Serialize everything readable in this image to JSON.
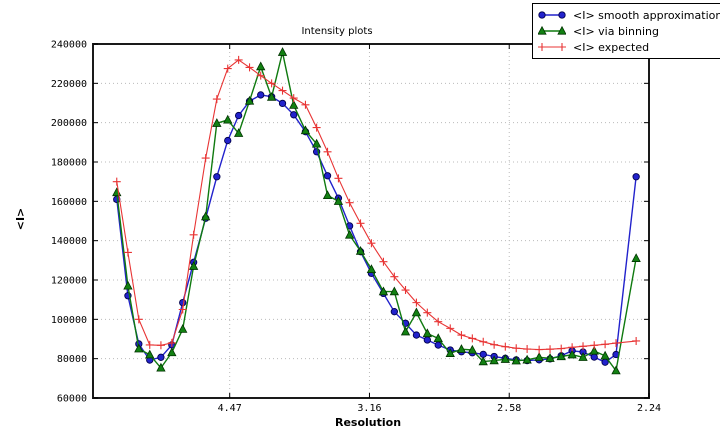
{
  "chart_data": {
    "type": "line",
    "title": "Intensity plots",
    "xlabel": "Resolution",
    "ylabel": "<I>",
    "grid": true,
    "legend_position": "upper right",
    "x_axis": {
      "range": [
        0.0011,
        0.2
      ],
      "tick_values": [
        0.05,
        0.1,
        0.15,
        0.2
      ],
      "tick_labels": [
        "4.47",
        "3.16",
        "2.58",
        "2.24"
      ]
    },
    "y_axis": {
      "range": [
        60000,
        240000
      ],
      "tick_values": [
        60000,
        80000,
        100000,
        120000,
        140000,
        160000,
        180000,
        200000,
        220000,
        240000
      ],
      "tick_labels": [
        "60000",
        "80000",
        "100000",
        "120000",
        "140000",
        "160000",
        "180000",
        "200000",
        "220000",
        "240000"
      ]
    },
    "x": [
      0.0096,
      0.0136,
      0.0175,
      0.0214,
      0.0254,
      0.0293,
      0.0332,
      0.0371,
      0.0414,
      0.0454,
      0.0493,
      0.0532,
      0.0571,
      0.0611,
      0.065,
      0.0689,
      0.0729,
      0.0771,
      0.0811,
      0.085,
      0.0889,
      0.0929,
      0.0968,
      0.1007,
      0.105,
      0.1089,
      0.1129,
      0.1168,
      0.1207,
      0.1246,
      0.1289,
      0.1329,
      0.1368,
      0.1407,
      0.1446,
      0.1486,
      0.1525,
      0.1564,
      0.1607,
      0.1646,
      0.1686,
      0.1725,
      0.1764,
      0.1804,
      0.1843,
      0.1882,
      0.1954
    ],
    "series": [
      {
        "name": "<I> smooth approximation",
        "marker": "circle",
        "color": "#2222cc",
        "marker_fill": "#2222cc",
        "marker_edge": "#00004d",
        "values": [
          161000,
          112000,
          87500,
          79300,
          80700,
          87000,
          108500,
          129000,
          151400,
          172500,
          190900,
          203600,
          210900,
          214100,
          213200,
          209800,
          204000,
          195400,
          185200,
          173000,
          161600,
          147500,
          134400,
          123400,
          113200,
          103900,
          98000,
          92000,
          89500,
          86900,
          84400,
          83500,
          83000,
          82200,
          81100,
          80200,
          79400,
          79000,
          79400,
          79900,
          81500,
          84000,
          83400,
          80800,
          78200,
          82100,
          172500
        ]
      },
      {
        "name": "<I> via binning",
        "marker": "triangle",
        "color": "#0f7a0f",
        "marker_fill": "#128112",
        "marker_edge": "#003300",
        "values": [
          164500,
          117000,
          85000,
          82000,
          75300,
          83100,
          95000,
          127000,
          152200,
          199700,
          201400,
          194600,
          211000,
          228500,
          213000,
          235800,
          208900,
          196000,
          189200,
          163000,
          160000,
          142900,
          134700,
          125400,
          114100,
          114100,
          93700,
          103400,
          92800,
          90300,
          82700,
          84800,
          84400,
          78500,
          79000,
          79700,
          78900,
          79400,
          80700,
          80200,
          81100,
          82000,
          80700,
          83900,
          81400,
          73900,
          131000
        ]
      },
      {
        "name": "<I> expected",
        "marker": "plus",
        "color": "#e83434",
        "marker_fill": "#e83434",
        "marker_edge": "#e83434",
        "values": [
          170000,
          134000,
          100000,
          87000,
          86800,
          88000,
          105000,
          143000,
          182000,
          212000,
          227500,
          231900,
          228100,
          223900,
          220000,
          216300,
          212500,
          209100,
          197500,
          185200,
          171700,
          159300,
          148800,
          138700,
          129300,
          121700,
          114900,
          108500,
          103400,
          98800,
          95400,
          92000,
          90300,
          88600,
          87100,
          86100,
          85300,
          84900,
          84600,
          84800,
          85100,
          85800,
          86300,
          86800,
          87300,
          87900,
          89000
        ]
      }
    ],
    "style": {
      "grid_color": "#bbbbbb",
      "frame_color": "#1a1a1a",
      "background": "#ffffff"
    }
  }
}
